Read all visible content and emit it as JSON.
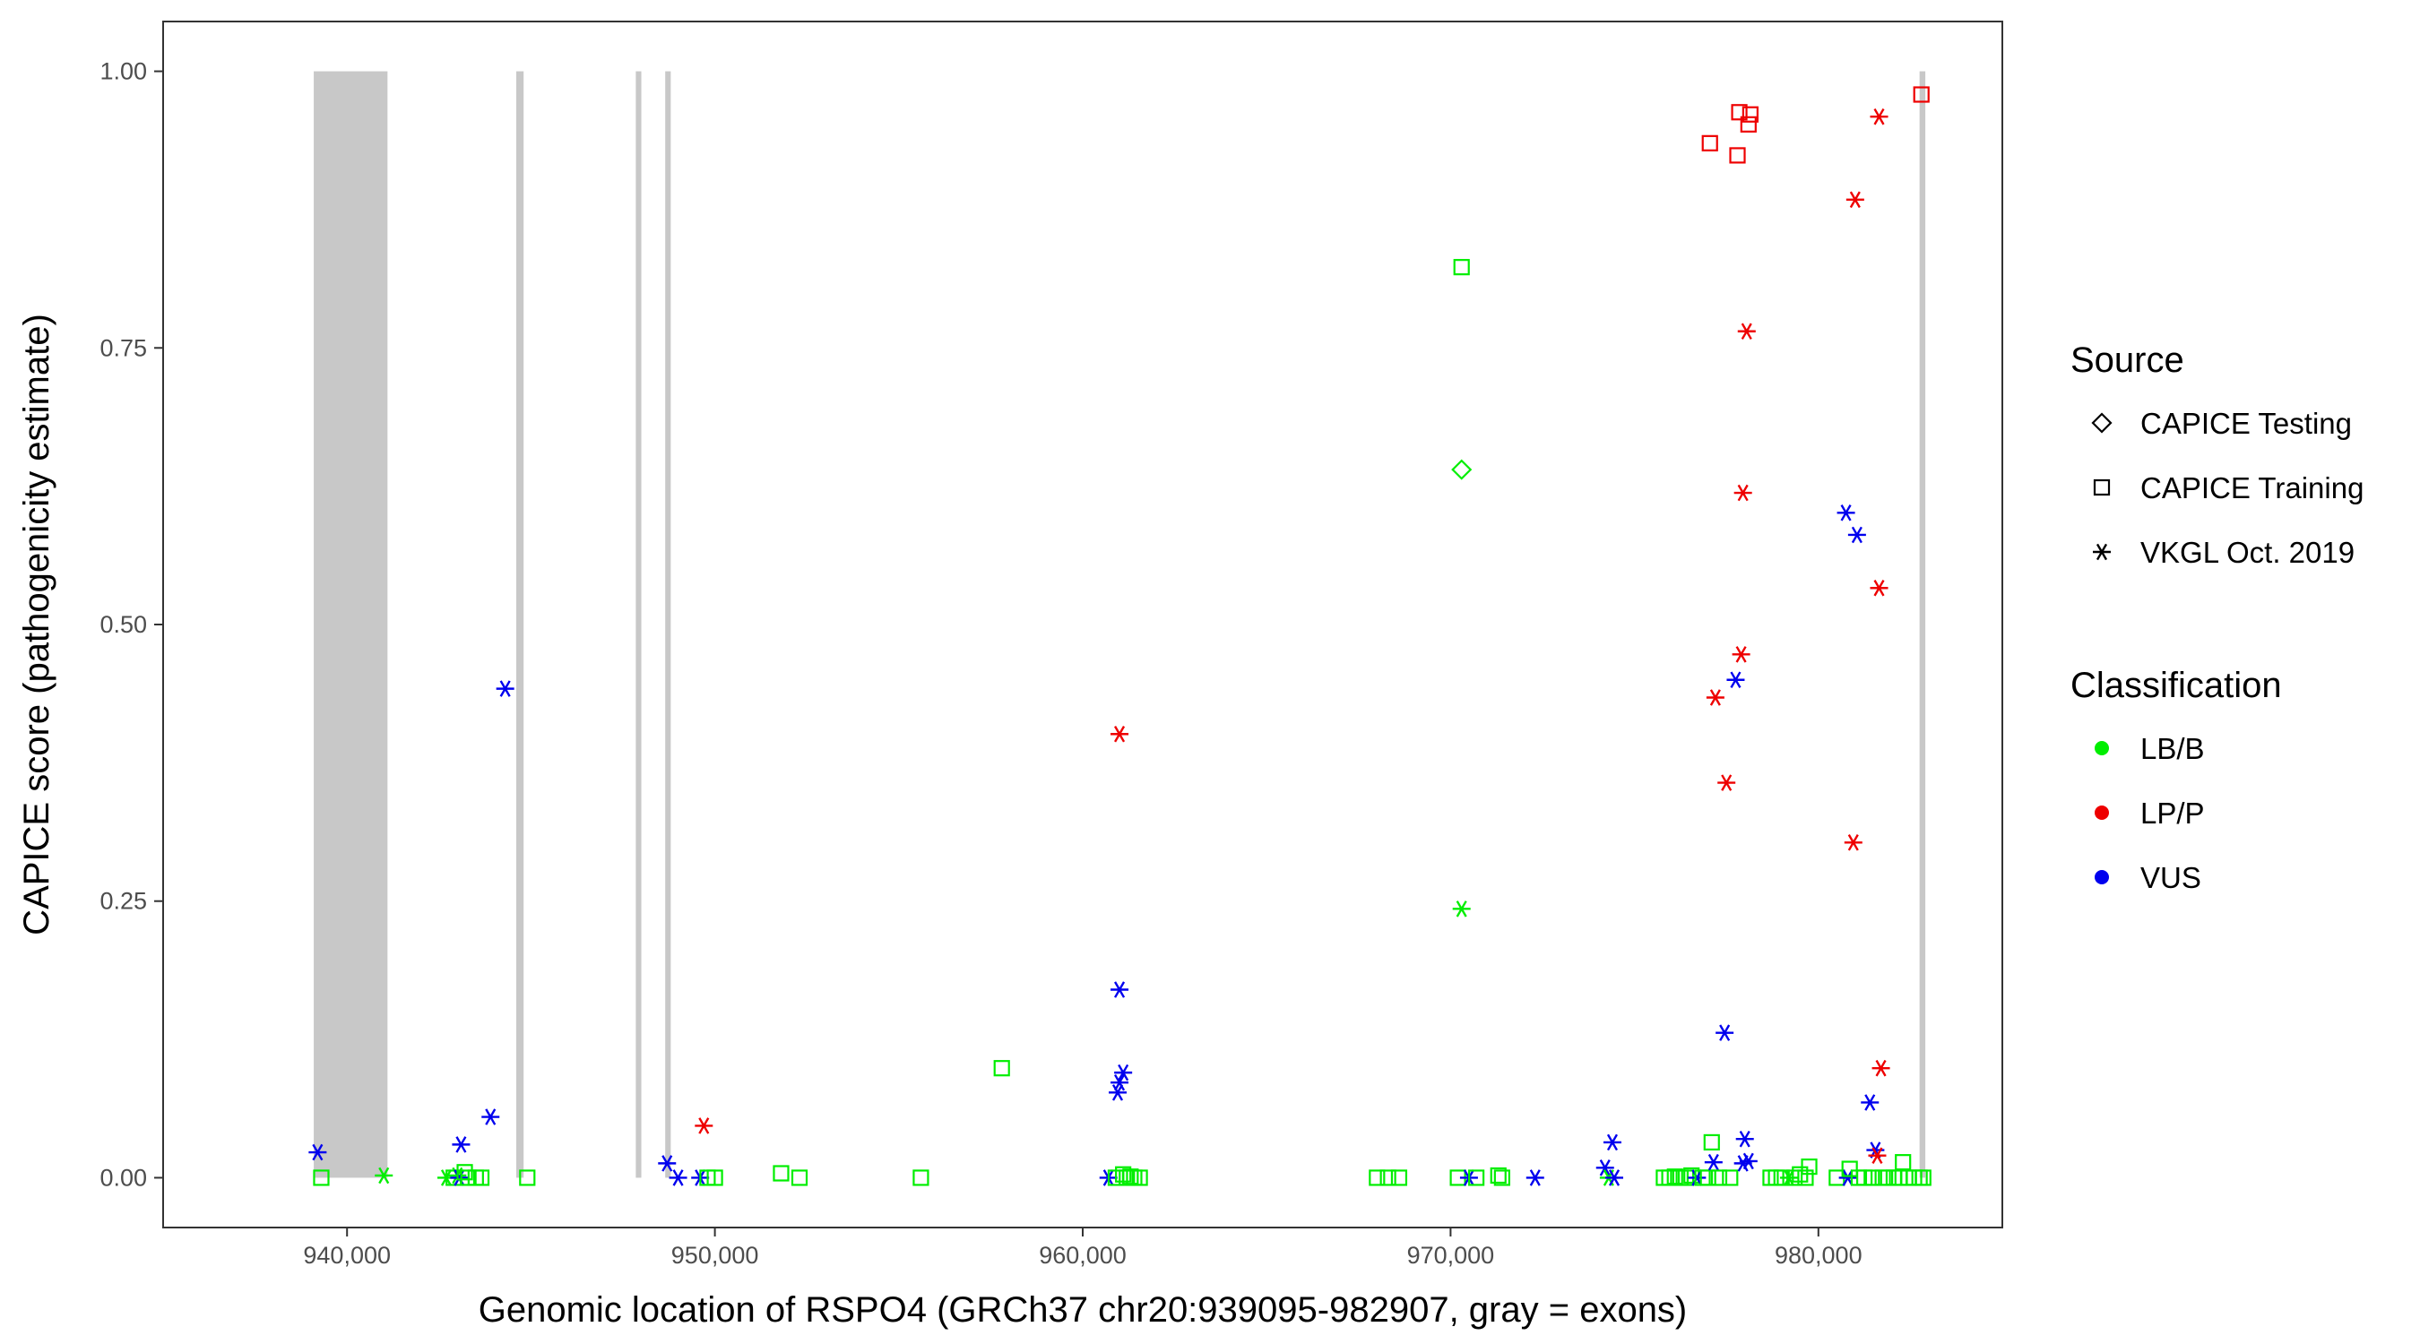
{
  "chart_data": {
    "type": "scatter",
    "xlabel": "Genomic location of RSPO4 (GRCh37 chr20:939095-982907, gray = exons)",
    "ylabel": "CAPICE score (pathogenicity estimate)",
    "xlim": [
      935000,
      985000
    ],
    "ylim": [
      -0.045,
      1.045
    ],
    "x_ticks": [
      940000,
      950000,
      960000,
      970000,
      980000
    ],
    "x_tick_labels": [
      "940,000",
      "950,000",
      "960,000",
      "970,000",
      "980,000"
    ],
    "y_ticks": [
      0,
      0.25,
      0.5,
      0.75,
      1
    ],
    "y_tick_labels": [
      "0.00",
      "0.25",
      "0.50",
      "0.75",
      "1.00"
    ],
    "grid": false,
    "exons_color": "#c8c8c8",
    "exons": [
      [
        939095,
        941100
      ],
      [
        944600,
        944800
      ],
      [
        947850,
        948000
      ],
      [
        948650,
        948800
      ],
      [
        982750,
        982907
      ]
    ],
    "legend": {
      "placement": "right",
      "source": {
        "title": "Source",
        "items": [
          {
            "label": "CAPICE Testing",
            "shape": "diamond"
          },
          {
            "label": "CAPICE Training",
            "shape": "square"
          },
          {
            "label": "VKGL Oct. 2019",
            "shape": "asterisk"
          }
        ]
      },
      "classification": {
        "title": "Classification",
        "items": [
          {
            "label": "LB/B",
            "color": "#00ee00"
          },
          {
            "label": "LP/P",
            "color": "#ee0000"
          },
          {
            "label": "VUS",
            "color": "#0000ee"
          }
        ]
      }
    },
    "points": [
      {
        "x": 939200,
        "y": 0.023,
        "source": "VKGL Oct. 2019",
        "class": "VUS"
      },
      {
        "x": 939300,
        "y": 0.0,
        "source": "CAPICE Training",
        "class": "LB/B"
      },
      {
        "x": 941000,
        "y": 0.002,
        "source": "VKGL Oct. 2019",
        "class": "LB/B"
      },
      {
        "x": 942700,
        "y": 0.0,
        "source": "VKGL Oct. 2019",
        "class": "LB/B"
      },
      {
        "x": 942900,
        "y": 0.0,
        "source": "CAPICE Training",
        "class": "LB/B"
      },
      {
        "x": 943000,
        "y": 0.002,
        "source": "VKGL Oct. 2019",
        "class": "LB/B"
      },
      {
        "x": 943050,
        "y": 0.0,
        "source": "VKGL Oct. 2019",
        "class": "VUS"
      },
      {
        "x": 943100,
        "y": 0.03,
        "source": "VKGL Oct. 2019",
        "class": "VUS"
      },
      {
        "x": 943200,
        "y": 0.005,
        "source": "CAPICE Training",
        "class": "LB/B"
      },
      {
        "x": 943300,
        "y": 0.0,
        "source": "CAPICE Training",
        "class": "LB/B"
      },
      {
        "x": 943500,
        "y": 0.0,
        "source": "CAPICE Training",
        "class": "LB/B"
      },
      {
        "x": 943650,
        "y": 0.0,
        "source": "CAPICE Training",
        "class": "LB/B"
      },
      {
        "x": 943900,
        "y": 0.055,
        "source": "VKGL Oct. 2019",
        "class": "VUS"
      },
      {
        "x": 944300,
        "y": 0.442,
        "source": "VKGL Oct. 2019",
        "class": "VUS"
      },
      {
        "x": 944900,
        "y": 0.0,
        "source": "CAPICE Training",
        "class": "LB/B"
      },
      {
        "x": 948700,
        "y": 0.013,
        "source": "VKGL Oct. 2019",
        "class": "VUS"
      },
      {
        "x": 949000,
        "y": 0.0,
        "source": "VKGL Oct. 2019",
        "class": "VUS"
      },
      {
        "x": 949600,
        "y": 0.0,
        "source": "VKGL Oct. 2019",
        "class": "VUS"
      },
      {
        "x": 949700,
        "y": 0.047,
        "source": "VKGL Oct. 2019",
        "class": "LP/P"
      },
      {
        "x": 949800,
        "y": 0.0,
        "source": "CAPICE Training",
        "class": "LB/B"
      },
      {
        "x": 950000,
        "y": 0.0,
        "source": "CAPICE Training",
        "class": "LB/B"
      },
      {
        "x": 951800,
        "y": 0.004,
        "source": "CAPICE Training",
        "class": "LB/B"
      },
      {
        "x": 952300,
        "y": 0.0,
        "source": "CAPICE Training",
        "class": "LB/B"
      },
      {
        "x": 955600,
        "y": 0.0,
        "source": "CAPICE Training",
        "class": "LB/B"
      },
      {
        "x": 957800,
        "y": 0.099,
        "source": "CAPICE Training",
        "class": "LB/B"
      },
      {
        "x": 960700,
        "y": 0.0,
        "source": "VKGL Oct. 2019",
        "class": "VUS"
      },
      {
        "x": 960900,
        "y": 0.0,
        "source": "CAPICE Training",
        "class": "LB/B"
      },
      {
        "x": 961000,
        "y": 0.401,
        "source": "VKGL Oct. 2019",
        "class": "LP/P"
      },
      {
        "x": 961000,
        "y": 0.17,
        "source": "VKGL Oct. 2019",
        "class": "VUS"
      },
      {
        "x": 960950,
        "y": 0.077,
        "source": "VKGL Oct. 2019",
        "class": "VUS"
      },
      {
        "x": 961000,
        "y": 0.086,
        "source": "VKGL Oct. 2019",
        "class": "VUS"
      },
      {
        "x": 961100,
        "y": 0.095,
        "source": "VKGL Oct. 2019",
        "class": "VUS"
      },
      {
        "x": 961100,
        "y": 0.003,
        "source": "CAPICE Training",
        "class": "LB/B"
      },
      {
        "x": 961200,
        "y": 0.0,
        "source": "CAPICE Training",
        "class": "LB/B"
      },
      {
        "x": 961300,
        "y": 0.001,
        "source": "CAPICE Training",
        "class": "LB/B"
      },
      {
        "x": 961400,
        "y": 0.0,
        "source": "CAPICE Training",
        "class": "LB/B"
      },
      {
        "x": 961550,
        "y": 0.0,
        "source": "CAPICE Training",
        "class": "LB/B"
      },
      {
        "x": 968000,
        "y": 0.0,
        "source": "CAPICE Training",
        "class": "LB/B"
      },
      {
        "x": 968300,
        "y": 0.0,
        "source": "CAPICE Training",
        "class": "LB/B"
      },
      {
        "x": 968600,
        "y": 0.0,
        "source": "CAPICE Training",
        "class": "LB/B"
      },
      {
        "x": 970300,
        "y": 0.823,
        "source": "CAPICE Training",
        "class": "LB/B"
      },
      {
        "x": 970300,
        "y": 0.64,
        "source": "CAPICE Testing",
        "class": "LB/B"
      },
      {
        "x": 970300,
        "y": 0.243,
        "source": "VKGL Oct. 2019",
        "class": "LB/B"
      },
      {
        "x": 970200,
        "y": 0.0,
        "source": "CAPICE Training",
        "class": "LB/B"
      },
      {
        "x": 970500,
        "y": 0.0,
        "source": "VKGL Oct. 2019",
        "class": "VUS"
      },
      {
        "x": 970700,
        "y": 0.0,
        "source": "CAPICE Training",
        "class": "LB/B"
      },
      {
        "x": 971300,
        "y": 0.002,
        "source": "CAPICE Training",
        "class": "LB/B"
      },
      {
        "x": 971400,
        "y": 0.0,
        "source": "CAPICE Training",
        "class": "LB/B"
      },
      {
        "x": 972300,
        "y": 0.0,
        "source": "VKGL Oct. 2019",
        "class": "VUS"
      },
      {
        "x": 974200,
        "y": 0.009,
        "source": "VKGL Oct. 2019",
        "class": "VUS"
      },
      {
        "x": 974300,
        "y": 0.0,
        "source": "VKGL Oct. 2019",
        "class": "LB/B"
      },
      {
        "x": 974400,
        "y": 0.032,
        "source": "VKGL Oct. 2019",
        "class": "VUS"
      },
      {
        "x": 974450,
        "y": 0.0,
        "source": "VKGL Oct. 2019",
        "class": "VUS"
      },
      {
        "x": 975800,
        "y": 0.0,
        "source": "CAPICE Training",
        "class": "LB/B"
      },
      {
        "x": 975950,
        "y": 0.0,
        "source": "CAPICE Training",
        "class": "LB/B"
      },
      {
        "x": 976100,
        "y": 0.001,
        "source": "CAPICE Training",
        "class": "LB/B"
      },
      {
        "x": 976250,
        "y": 0.0,
        "source": "CAPICE Training",
        "class": "LB/B"
      },
      {
        "x": 976400,
        "y": 0.0,
        "source": "CAPICE Training",
        "class": "LB/B"
      },
      {
        "x": 976550,
        "y": 0.002,
        "source": "CAPICE Training",
        "class": "LB/B"
      },
      {
        "x": 976700,
        "y": 0.0,
        "source": "VKGL Oct. 2019",
        "class": "VUS"
      },
      {
        "x": 976850,
        "y": 0.0,
        "source": "CAPICE Training",
        "class": "LB/B"
      },
      {
        "x": 977000,
        "y": 0.0,
        "source": "CAPICE Training",
        "class": "LB/B"
      },
      {
        "x": 977050,
        "y": 0.935,
        "source": "CAPICE Training",
        "class": "LP/P"
      },
      {
        "x": 977100,
        "y": 0.032,
        "source": "CAPICE Training",
        "class": "LB/B"
      },
      {
        "x": 977150,
        "y": 0.014,
        "source": "VKGL Oct. 2019",
        "class": "VUS"
      },
      {
        "x": 977200,
        "y": 0.434,
        "source": "VKGL Oct. 2019",
        "class": "LP/P"
      },
      {
        "x": 977300,
        "y": 0.0,
        "source": "CAPICE Training",
        "class": "LB/B"
      },
      {
        "x": 977450,
        "y": 0.131,
        "source": "VKGL Oct. 2019",
        "class": "VUS"
      },
      {
        "x": 977500,
        "y": 0.357,
        "source": "VKGL Oct. 2019",
        "class": "LP/P"
      },
      {
        "x": 977600,
        "y": 0.0,
        "source": "CAPICE Training",
        "class": "LB/B"
      },
      {
        "x": 977750,
        "y": 0.45,
        "source": "VKGL Oct. 2019",
        "class": "VUS"
      },
      {
        "x": 977800,
        "y": 0.924,
        "source": "CAPICE Training",
        "class": "LP/P"
      },
      {
        "x": 977850,
        "y": 0.963,
        "source": "CAPICE Training",
        "class": "LP/P"
      },
      {
        "x": 977900,
        "y": 0.473,
        "source": "VKGL Oct. 2019",
        "class": "LP/P"
      },
      {
        "x": 977950,
        "y": 0.619,
        "source": "VKGL Oct. 2019",
        "class": "LP/P"
      },
      {
        "x": 977950,
        "y": 0.013,
        "source": "VKGL Oct. 2019",
        "class": "VUS"
      },
      {
        "x": 978000,
        "y": 0.035,
        "source": "VKGL Oct. 2019",
        "class": "VUS"
      },
      {
        "x": 978050,
        "y": 0.765,
        "source": "VKGL Oct. 2019",
        "class": "LP/P"
      },
      {
        "x": 978100,
        "y": 0.952,
        "source": "CAPICE Training",
        "class": "LP/P"
      },
      {
        "x": 978150,
        "y": 0.961,
        "source": "CAPICE Training",
        "class": "LP/P"
      },
      {
        "x": 978100,
        "y": 0.015,
        "source": "VKGL Oct. 2019",
        "class": "VUS"
      },
      {
        "x": 978700,
        "y": 0.0,
        "source": "CAPICE Training",
        "class": "LB/B"
      },
      {
        "x": 978850,
        "y": 0.0,
        "source": "CAPICE Training",
        "class": "LB/B"
      },
      {
        "x": 979000,
        "y": 0.0,
        "source": "CAPICE Training",
        "class": "LB/B"
      },
      {
        "x": 979200,
        "y": 0.0,
        "source": "VKGL Oct. 2019",
        "class": "LB/B"
      },
      {
        "x": 979350,
        "y": 0.0,
        "source": "CAPICE Training",
        "class": "LB/B"
      },
      {
        "x": 979500,
        "y": 0.003,
        "source": "CAPICE Training",
        "class": "LB/B"
      },
      {
        "x": 979650,
        "y": 0.0,
        "source": "CAPICE Training",
        "class": "LB/B"
      },
      {
        "x": 979750,
        "y": 0.01,
        "source": "CAPICE Training",
        "class": "LB/B"
      },
      {
        "x": 980500,
        "y": 0.0,
        "source": "CAPICE Training",
        "class": "LB/B"
      },
      {
        "x": 980750,
        "y": 0.601,
        "source": "VKGL Oct. 2019",
        "class": "VUS"
      },
      {
        "x": 980800,
        "y": 0.0,
        "source": "VKGL Oct. 2019",
        "class": "VUS"
      },
      {
        "x": 980850,
        "y": 0.008,
        "source": "CAPICE Training",
        "class": "LB/B"
      },
      {
        "x": 980950,
        "y": 0.303,
        "source": "VKGL Oct. 2019",
        "class": "LP/P"
      },
      {
        "x": 981000,
        "y": 0.884,
        "source": "VKGL Oct. 2019",
        "class": "LP/P"
      },
      {
        "x": 981050,
        "y": 0.581,
        "source": "VKGL Oct. 2019",
        "class": "VUS"
      },
      {
        "x": 981100,
        "y": 0.0,
        "source": "CAPICE Training",
        "class": "LB/B"
      },
      {
        "x": 981250,
        "y": 0.0,
        "source": "CAPICE Training",
        "class": "LB/B"
      },
      {
        "x": 981400,
        "y": 0.068,
        "source": "VKGL Oct. 2019",
        "class": "VUS"
      },
      {
        "x": 981450,
        "y": 0.0,
        "source": "CAPICE Training",
        "class": "LB/B"
      },
      {
        "x": 981550,
        "y": 0.025,
        "source": "VKGL Oct. 2019",
        "class": "VUS"
      },
      {
        "x": 981600,
        "y": 0.02,
        "source": "VKGL Oct. 2019",
        "class": "LP/P"
      },
      {
        "x": 981650,
        "y": 0.533,
        "source": "VKGL Oct. 2019",
        "class": "LP/P"
      },
      {
        "x": 981650,
        "y": 0.959,
        "source": "VKGL Oct. 2019",
        "class": "LP/P"
      },
      {
        "x": 981700,
        "y": 0.099,
        "source": "VKGL Oct. 2019",
        "class": "LP/P"
      },
      {
        "x": 981750,
        "y": 0.0,
        "source": "CAPICE Training",
        "class": "LB/B"
      },
      {
        "x": 981900,
        "y": 0.0,
        "source": "CAPICE Training",
        "class": "LB/B"
      },
      {
        "x": 982050,
        "y": 0.0,
        "source": "CAPICE Training",
        "class": "LB/B"
      },
      {
        "x": 982200,
        "y": 0.0,
        "source": "CAPICE Training",
        "class": "LB/B"
      },
      {
        "x": 982300,
        "y": 0.014,
        "source": "CAPICE Training",
        "class": "LB/B"
      },
      {
        "x": 982450,
        "y": 0.0,
        "source": "CAPICE Training",
        "class": "LB/B"
      },
      {
        "x": 982600,
        "y": 0.0,
        "source": "CAPICE Training",
        "class": "LB/B"
      },
      {
        "x": 982750,
        "y": 0.0,
        "source": "CAPICE Training",
        "class": "LB/B"
      },
      {
        "x": 982800,
        "y": 0.979,
        "source": "CAPICE Training",
        "class": "LP/P"
      },
      {
        "x": 982850,
        "y": 0.0,
        "source": "CAPICE Training",
        "class": "LB/B"
      }
    ]
  }
}
